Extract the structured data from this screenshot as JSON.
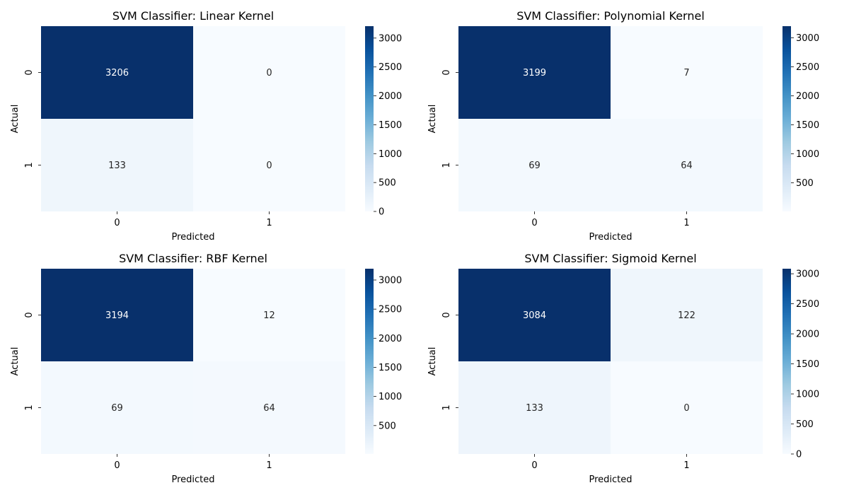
{
  "colormap": {
    "name": "Blues",
    "stops": [
      "#f7fbff",
      "#deebf7",
      "#c6dbef",
      "#9ecae1",
      "#6baed6",
      "#4292c6",
      "#2171b5",
      "#08519c",
      "#08306b"
    ]
  },
  "chart_data": [
    {
      "type": "heatmap",
      "title": "SVM Classifier: Linear Kernel",
      "xlabel": "Predicted",
      "ylabel": "Actual",
      "x_categories": [
        "0",
        "1"
      ],
      "y_categories": [
        "0",
        "1"
      ],
      "values": [
        [
          3206,
          0
        ],
        [
          133,
          0
        ]
      ],
      "colorbar": {
        "min": 0,
        "max": 3206,
        "ticks": [
          0,
          500,
          1000,
          1500,
          2000,
          2500,
          3000
        ]
      }
    },
    {
      "type": "heatmap",
      "title": "SVM Classifier: Polynomial Kernel",
      "xlabel": "Predicted",
      "ylabel": "Actual",
      "x_categories": [
        "0",
        "1"
      ],
      "y_categories": [
        "0",
        "1"
      ],
      "values": [
        [
          3199,
          7
        ],
        [
          69,
          64
        ]
      ],
      "colorbar": {
        "min": 7,
        "max": 3199,
        "ticks": [
          500,
          1000,
          1500,
          2000,
          2500,
          3000
        ]
      }
    },
    {
      "type": "heatmap",
      "title": "SVM Classifier: RBF Kernel",
      "xlabel": "Predicted",
      "ylabel": "Actual",
      "x_categories": [
        "0",
        "1"
      ],
      "y_categories": [
        "0",
        "1"
      ],
      "values": [
        [
          3194,
          12
        ],
        [
          69,
          64
        ]
      ],
      "colorbar": {
        "min": 12,
        "max": 3194,
        "ticks": [
          500,
          1000,
          1500,
          2000,
          2500,
          3000
        ]
      }
    },
    {
      "type": "heatmap",
      "title": "SVM Classifier: Sigmoid Kernel",
      "xlabel": "Predicted",
      "ylabel": "Actual",
      "x_categories": [
        "0",
        "1"
      ],
      "y_categories": [
        "0",
        "1"
      ],
      "values": [
        [
          3084,
          122
        ],
        [
          133,
          0
        ]
      ],
      "colorbar": {
        "min": 0,
        "max": 3084,
        "ticks": [
          0,
          500,
          1000,
          1500,
          2000,
          2500,
          3000
        ]
      }
    }
  ]
}
